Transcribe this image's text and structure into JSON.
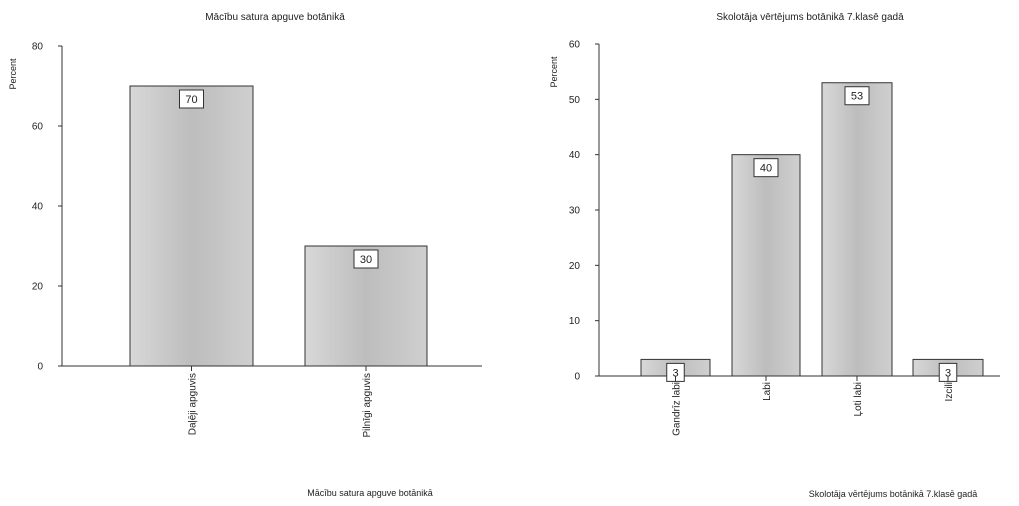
{
  "chart_data": [
    {
      "type": "bar",
      "title": "Mācību satura apguve botānikā",
      "ylabel": "Percent",
      "xlabel": "",
      "ylim": [
        0,
        80
      ],
      "yticks": [
        0,
        20,
        40,
        60,
        80
      ],
      "categories": [
        "Daļēji apguvis",
        "Pilnīgi apguvis"
      ],
      "values": [
        70,
        30
      ],
      "data_labels": [
        "70",
        "30"
      ],
      "caption": "Mācību satura apguve botānikā",
      "bar_color": "#c4c4c4"
    },
    {
      "type": "bar",
      "title": "Skolotāja vērtējums botānikā 7.klasē gadā",
      "ylabel": "Percent",
      "xlabel": "",
      "ylim": [
        0,
        60
      ],
      "yticks": [
        0,
        10,
        20,
        30,
        40,
        50,
        60
      ],
      "categories": [
        "Gandrīz labi",
        "Labi",
        "Ļoti labi",
        "Izcili"
      ],
      "values": [
        3,
        40,
        53,
        3
      ],
      "data_labels": [
        "3",
        "40",
        "53",
        "3"
      ],
      "caption": "Skolotāja vērtējums botānikā 7.klasē gadā",
      "bar_color": "#c4c4c4"
    }
  ]
}
